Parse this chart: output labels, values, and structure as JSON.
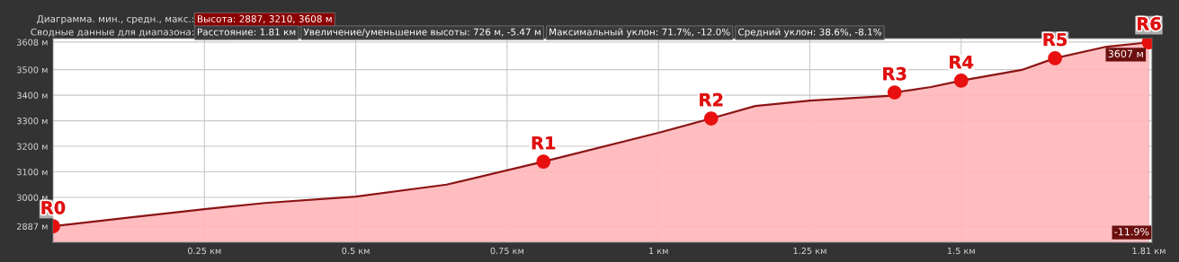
{
  "chart_data": {
    "type": "area",
    "x": [
      0,
      0.13,
      0.25,
      0.35,
      0.5,
      0.65,
      0.81,
      1.0,
      1.087,
      1.16,
      1.25,
      1.38,
      1.39,
      1.45,
      1.5,
      1.6,
      1.655,
      1.74,
      1.81
    ],
    "series": [
      {
        "color": "#8b1414",
        "values": [
          2887,
          2922,
          2954,
          2978,
          3003,
          3050,
          3140,
          3253,
          3309,
          3358,
          3379,
          3397,
          3411,
          3432,
          3457,
          3499,
          3545,
          3590,
          3607
        ],
        "value_labels": [
          null,
          null,
          null,
          null,
          null,
          null,
          null,
          null,
          null,
          null,
          null,
          null,
          null,
          null,
          null,
          null,
          null,
          null,
          "3607 м"
        ]
      },
      {
        "type": "scatter",
        "color": "#e8100f",
        "marker": "circle",
        "x": [
          0,
          0.81,
          1.087,
          1.39,
          1.5,
          1.655,
          1.81
        ],
        "values": [
          2887,
          3140,
          3309,
          3411,
          3457,
          3545,
          3607
        ]
      }
    ],
    "xlim": [
      0,
      1.815
    ],
    "ylim": [
      2824,
      3622
    ],
    "xticks": [
      {
        "value": 0.25,
        "label": "0.25 км"
      },
      {
        "value": 0.5,
        "label": "0.5 км"
      },
      {
        "value": 0.75,
        "label": "0.75 км"
      },
      {
        "value": 1,
        "label": "1 км"
      },
      {
        "value": 1.25,
        "label": "1.25 км"
      },
      {
        "value": 1.5,
        "label": "1.5 км"
      },
      {
        "value": 1.81,
        "label": "1.81 км"
      }
    ],
    "yticks": [
      {
        "value": 2887,
        "label": "2887 м"
      },
      {
        "value": 3000,
        "label": "3000 м"
      },
      {
        "value": 3100,
        "label": "3100 м"
      },
      {
        "value": 3200,
        "label": "3200 м"
      },
      {
        "value": 3300,
        "label": "3300 м"
      },
      {
        "value": 3400,
        "label": "3400 м"
      },
      {
        "value": 3500,
        "label": "3500 м"
      },
      {
        "value": 3608,
        "label": "3608 м"
      }
    ],
    "grid": true,
    "annotations": [
      "Диаграмма. мин., средн., макс.:",
      "Высота: 2887, 3210, 3608 м",
      "Сводные данные для диапазона:",
      "Расстояние: 1.81 км",
      "Увеличение/уменьшение высоты: 726 м, -5.47 м",
      "Максимальный уклон: 71.7%, -12.0%",
      "Средний уклон: 38.6%, -8.1%",
      "-11.9%",
      {
        "text": "R0",
        "x": 0,
        "y": 2887
      },
      {
        "text": "R1",
        "x": 0.81,
        "y": 3140
      },
      {
        "text": "R2",
        "x": 1.087,
        "y": 3309
      },
      {
        "text": "R3",
        "x": 1.39,
        "y": 3411
      },
      {
        "text": "R4",
        "x": 1.5,
        "y": 3457
      },
      {
        "text": "R5",
        "x": 1.655,
        "y": 3545
      },
      {
        "text": "R6",
        "x": 1.81,
        "y": 3607
      }
    ]
  }
}
